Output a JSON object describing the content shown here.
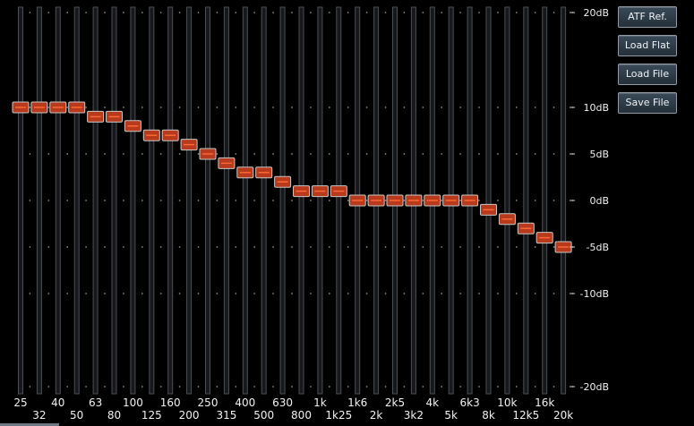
{
  "eq": {
    "bands": [
      {
        "label": "25",
        "gain_db": 10
      },
      {
        "label": "32",
        "gain_db": 10
      },
      {
        "label": "40",
        "gain_db": 10
      },
      {
        "label": "50",
        "gain_db": 10
      },
      {
        "label": "63",
        "gain_db": 9
      },
      {
        "label": "80",
        "gain_db": 9
      },
      {
        "label": "100",
        "gain_db": 8
      },
      {
        "label": "125",
        "gain_db": 7
      },
      {
        "label": "160",
        "gain_db": 7
      },
      {
        "label": "200",
        "gain_db": 6
      },
      {
        "label": "250",
        "gain_db": 5
      },
      {
        "label": "315",
        "gain_db": 4
      },
      {
        "label": "400",
        "gain_db": 3
      },
      {
        "label": "500",
        "gain_db": 3
      },
      {
        "label": "630",
        "gain_db": 2
      },
      {
        "label": "800",
        "gain_db": 1
      },
      {
        "label": "1k",
        "gain_db": 1
      },
      {
        "label": "1k25",
        "gain_db": 1
      },
      {
        "label": "1k6",
        "gain_db": 0
      },
      {
        "label": "2k",
        "gain_db": 0
      },
      {
        "label": "2k5",
        "gain_db": 0
      },
      {
        "label": "3k2",
        "gain_db": 0
      },
      {
        "label": "4k",
        "gain_db": 0
      },
      {
        "label": "5k",
        "gain_db": 0
      },
      {
        "label": "6k3",
        "gain_db": 0
      },
      {
        "label": "8k",
        "gain_db": -1
      },
      {
        "label": "10k",
        "gain_db": -2
      },
      {
        "label": "12k5",
        "gain_db": -3
      },
      {
        "label": "16k",
        "gain_db": -4
      },
      {
        "label": "20k",
        "gain_db": -5
      }
    ],
    "db_scale": [
      {
        "label": "20dB",
        "value": 20
      },
      {
        "label": "10dB",
        "value": 10
      },
      {
        "label": "5dB",
        "value": 5
      },
      {
        "label": "0dB",
        "value": 0
      },
      {
        "label": "-5dB",
        "value": -5
      },
      {
        "label": "-10dB",
        "value": -10
      },
      {
        "label": "-20dB",
        "value": -20
      }
    ]
  },
  "buttons": {
    "atf_ref": "ATF Ref.",
    "load_flat": "Load Flat",
    "load_file": "Load File",
    "save_file": "Save File"
  },
  "colors": {
    "background": "#000000",
    "slider_track": "#4a4f55",
    "handle_fill": "#b83a1c",
    "handle_border": "#c8c8c8",
    "handle_line": "#ff6a3a"
  }
}
